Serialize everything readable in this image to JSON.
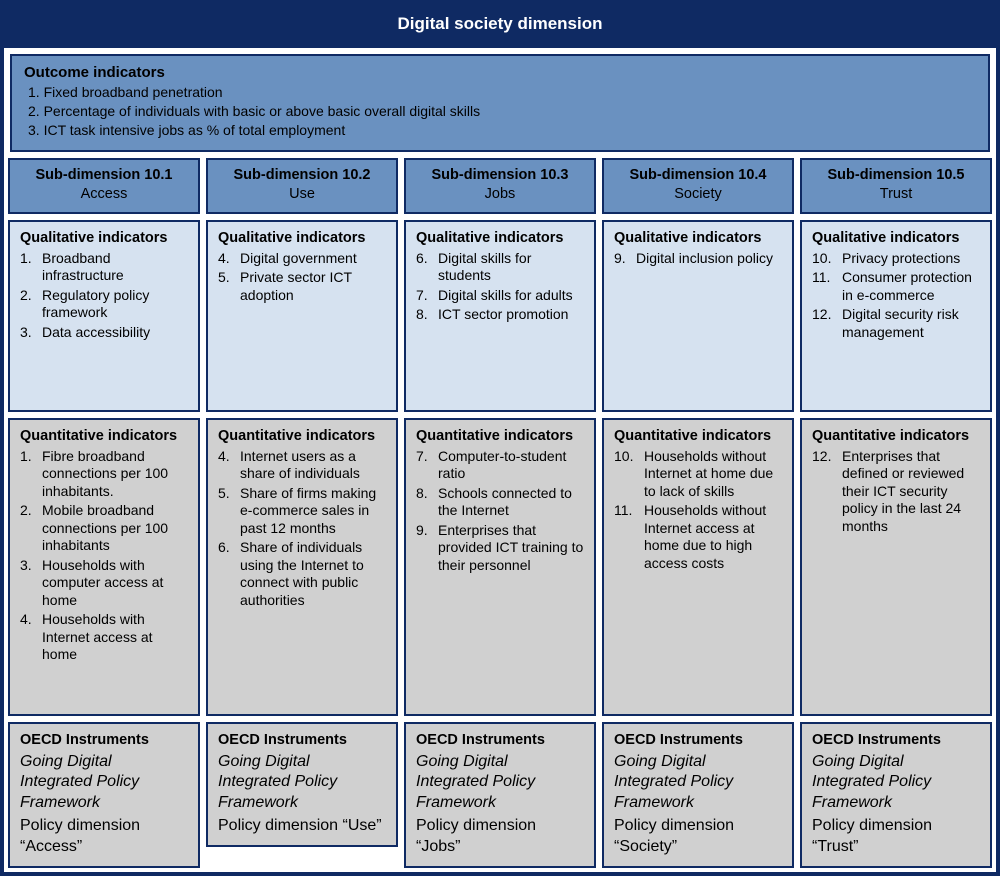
{
  "colors": {
    "border": "#0f2a63",
    "header_bg": "#0f2a63",
    "header_fg": "#ffffff",
    "subdim_bg": "#6a91c0",
    "qual_bg": "#d6e2f0",
    "quant_bg": "#d0d0d0",
    "instr_bg": "#d0d0d0"
  },
  "title": "Digital society dimension",
  "outcome": {
    "header": "Outcome indicators",
    "items": [
      {
        "n": "1.",
        "t": "Fixed broadband penetration"
      },
      {
        "n": "2.",
        "t": "Percentage of individuals with basic or above basic overall digital skills"
      },
      {
        "n": "3.",
        "t": "ICT task intensive jobs as % of total employment"
      }
    ]
  },
  "labels": {
    "qualitative": "Qualitative indicators",
    "quantitative": "Quantitative indicators",
    "oecd": "OECD Instruments",
    "framework": "Going Digital Integrated Policy Framework"
  },
  "columns": [
    {
      "code": "Sub-dimension 10.1",
      "name": "Access",
      "qualitative": [
        {
          "n": "1.",
          "t": "Broadband infrastructure"
        },
        {
          "n": "2.",
          "t": "Regulatory policy framework"
        },
        {
          "n": "3.",
          "t": "Data accessibility"
        }
      ],
      "quantitative": [
        {
          "n": "1.",
          "t": "Fibre broadband connections per 100 inhabitants."
        },
        {
          "n": "2.",
          "t": "Mobile broadband connections per 100 inhabitants"
        },
        {
          "n": "3.",
          "t": "Households with computer access at home"
        },
        {
          "n": "4.",
          "t": "Households with Internet access at home"
        }
      ],
      "policy_dimension": "Policy dimension “Access”"
    },
    {
      "code": "Sub-dimension 10.2",
      "name": "Use",
      "qualitative": [
        {
          "n": "4.",
          "t": "Digital government"
        },
        {
          "n": "5.",
          "t": "Private sector ICT adoption"
        }
      ],
      "quantitative": [
        {
          "n": "4.",
          "t": "Internet users as a share of individuals"
        },
        {
          "n": "5.",
          "t": "Share of firms making e-commerce sales in past 12 months"
        },
        {
          "n": "6.",
          "t": "Share of individuals using the Internet to connect with public authorities"
        }
      ],
      "policy_dimension": "Policy dimension “Use”"
    },
    {
      "code": "Sub-dimension 10.3",
      "name": "Jobs",
      "qualitative": [
        {
          "n": "6.",
          "t": "Digital skills for students"
        },
        {
          "n": "7.",
          "t": "Digital skills for adults"
        },
        {
          "n": "8.",
          "t": "ICT sector promotion"
        }
      ],
      "quantitative": [
        {
          "n": "7.",
          "t": "Computer-to-student ratio"
        },
        {
          "n": "8.",
          "t": "Schools connected to the Internet"
        },
        {
          "n": "9.",
          "t": "Enterprises that provided ICT training to their personnel"
        }
      ],
      "policy_dimension": "Policy dimension “Jobs”"
    },
    {
      "code": "Sub-dimension 10.4",
      "name": "Society",
      "qualitative": [
        {
          "n": "9.",
          "t": "Digital inclusion policy"
        }
      ],
      "quantitative": [
        {
          "n": "10.",
          "t": "Households without Internet at home due to lack of skills"
        },
        {
          "n": "11.",
          "t": "Households without Internet access at home due to high access costs"
        }
      ],
      "policy_dimension": "Policy dimension “Society”"
    },
    {
      "code": "Sub-dimension 10.5",
      "name": "Trust",
      "qualitative": [
        {
          "n": "10.",
          "t": "Privacy protections"
        },
        {
          "n": "11.",
          "t": "Consumer protection in e-commerce"
        },
        {
          "n": "12.",
          "t": "Digital security risk management"
        }
      ],
      "quantitative": [
        {
          "n": "12.",
          "t": "Enterprises that defined or reviewed their ICT security policy in the last 24 months"
        }
      ],
      "policy_dimension": "Policy dimension “Trust”"
    }
  ]
}
